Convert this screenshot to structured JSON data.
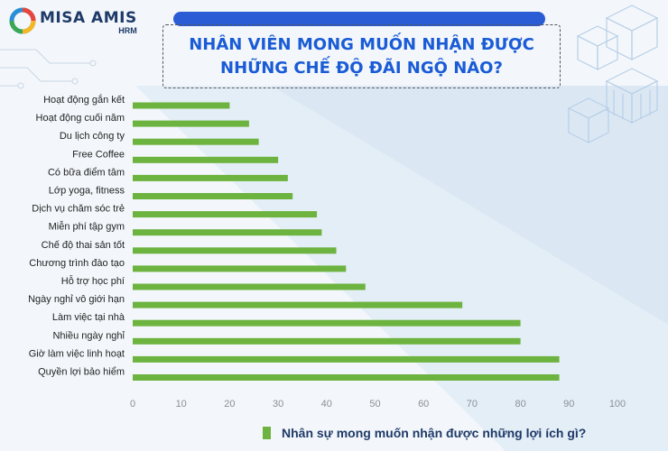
{
  "brand": {
    "name": "MISA AMIS",
    "sub": "HRM"
  },
  "title": {
    "line1": "NHÂN VIÊN MONG MUỐN NHẬN ĐƯỢC",
    "line2": "NHỮNG CHẾ ĐỘ ĐÃI NGỘ NÀO?"
  },
  "colors": {
    "bar": "#6db33f",
    "title": "#1a5bd6",
    "pill": "#2a5cd6"
  },
  "chart_data": {
    "type": "bar",
    "orientation": "horizontal",
    "categories": [
      "Hoạt động gắn kết",
      "Hoạt động cuối năm",
      "Du lịch công ty",
      "Free Coffee",
      "Có bữa điểm tâm",
      "Lớp yoga, fitness",
      "Dịch vụ chăm sóc trẻ",
      "Miễn phí tập gym",
      "Chế độ thai sản tốt",
      "Chương trình đào tạo",
      "Hỗ trợ học phí",
      "Ngày nghỉ vô giới hạn",
      "Làm việc tại nhà",
      "Nhiều ngày nghỉ",
      "Giờ làm việc linh hoạt",
      "Quyền lợi bảo hiểm"
    ],
    "series": [
      {
        "name": "Nhân sự mong muốn nhận được những lợi ích gì?",
        "values": [
          20,
          24,
          26,
          30,
          32,
          33,
          38,
          39,
          42,
          44,
          48,
          68,
          80,
          80,
          88,
          88
        ]
      }
    ],
    "xticks": [
      "0",
      "10",
      "20",
      "30",
      "40",
      "50",
      "60",
      "70",
      "80",
      "90",
      "100"
    ],
    "xlim": [
      0,
      100
    ],
    "grid": false,
    "legend_position": "bottom"
  }
}
